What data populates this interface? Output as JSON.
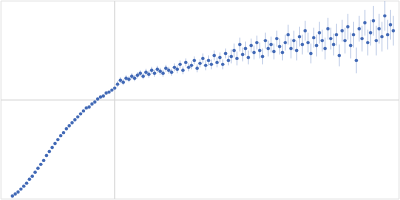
{
  "chart_data": {
    "type": "scatter",
    "color": "#3f67b5",
    "marker": "circle",
    "grid": true,
    "tick_labels": false,
    "xlim": [
      0,
      0.35
    ],
    "xticks": [
      0.1
    ],
    "ylim": [
      0,
      2
    ],
    "yticks": [
      1
    ],
    "x": [
      0.01,
      0.0125,
      0.015,
      0.0175,
      0.02,
      0.0225,
      0.025,
      0.0275,
      0.03,
      0.0325,
      0.035,
      0.0375,
      0.04,
      0.0425,
      0.045,
      0.0475,
      0.05,
      0.0525,
      0.055,
      0.0575,
      0.06,
      0.0625,
      0.065,
      0.0675,
      0.07,
      0.0725,
      0.075,
      0.0775,
      0.08,
      0.0825,
      0.085,
      0.0875,
      0.09,
      0.0925,
      0.095,
      0.0975,
      0.1,
      0.1025,
      0.105,
      0.1075,
      0.11,
      0.1125,
      0.115,
      0.1175,
      0.12,
      0.1225,
      0.125,
      0.1275,
      0.13,
      0.1325,
      0.135,
      0.1375,
      0.14,
      0.1425,
      0.145,
      0.1475,
      0.15,
      0.1525,
      0.155,
      0.1575,
      0.16,
      0.1625,
      0.165,
      0.1675,
      0.17,
      0.1725,
      0.175,
      0.1775,
      0.18,
      0.1825,
      0.185,
      0.1875,
      0.19,
      0.1925,
      0.195,
      0.1975,
      0.2,
      0.2025,
      0.205,
      0.2075,
      0.21,
      0.2125,
      0.215,
      0.2175,
      0.22,
      0.2225,
      0.225,
      0.2275,
      0.23,
      0.2325,
      0.235,
      0.2375,
      0.24,
      0.2425,
      0.245,
      0.2475,
      0.25,
      0.2525,
      0.255,
      0.2575,
      0.26,
      0.2625,
      0.265,
      0.2675,
      0.27,
      0.2725,
      0.275,
      0.2775,
      0.28,
      0.2825,
      0.285,
      0.2875,
      0.29,
      0.2925,
      0.295,
      0.2975,
      0.3,
      0.3025,
      0.305,
      0.3075,
      0.31,
      0.3125,
      0.315,
      0.3175,
      0.32,
      0.3225,
      0.325,
      0.3275,
      0.33,
      0.3325,
      0.335,
      0.3375,
      0.34,
      0.3425,
      0.345
    ],
    "values": [
      0.03,
      0.05,
      0.07,
      0.1,
      0.13,
      0.16,
      0.2,
      0.23,
      0.27,
      0.31,
      0.35,
      0.39,
      0.44,
      0.48,
      0.52,
      0.56,
      0.6,
      0.64,
      0.67,
      0.71,
      0.74,
      0.77,
      0.8,
      0.83,
      0.86,
      0.89,
      0.92,
      0.93,
      0.96,
      0.98,
      1.01,
      1.03,
      1.04,
      1.07,
      1.08,
      1.1,
      1.12,
      1.16,
      1.2,
      1.18,
      1.22,
      1.21,
      1.24,
      1.22,
      1.25,
      1.27,
      1.24,
      1.28,
      1.26,
      1.3,
      1.27,
      1.31,
      1.29,
      1.27,
      1.32,
      1.3,
      1.28,
      1.33,
      1.31,
      1.36,
      1.3,
      1.38,
      1.33,
      1.35,
      1.4,
      1.32,
      1.37,
      1.42,
      1.35,
      1.4,
      1.36,
      1.45,
      1.38,
      1.43,
      1.36,
      1.47,
      1.4,
      1.44,
      1.5,
      1.42,
      1.56,
      1.46,
      1.52,
      1.43,
      1.55,
      1.48,
      1.58,
      1.5,
      1.44,
      1.6,
      1.52,
      1.56,
      1.49,
      1.62,
      1.54,
      1.48,
      1.58,
      1.66,
      1.52,
      1.6,
      1.5,
      1.64,
      1.56,
      1.7,
      1.58,
      1.47,
      1.63,
      1.55,
      1.68,
      1.6,
      1.52,
      1.72,
      1.62,
      1.56,
      1.66,
      1.45,
      1.7,
      1.6,
      1.74,
      1.55,
      1.66,
      1.4,
      1.72,
      1.62,
      1.78,
      1.58,
      1.68,
      1.8,
      1.6,
      1.72,
      1.64,
      1.85,
      1.66,
      1.76,
      1.7
    ],
    "errors": [
      0.005,
      0.005,
      0.005,
      0.005,
      0.005,
      0.005,
      0.005,
      0.005,
      0.005,
      0.005,
      0.006,
      0.006,
      0.006,
      0.006,
      0.006,
      0.006,
      0.006,
      0.006,
      0.006,
      0.006,
      0.008,
      0.008,
      0.008,
      0.008,
      0.008,
      0.008,
      0.008,
      0.008,
      0.008,
      0.008,
      0.01,
      0.01,
      0.01,
      0.01,
      0.01,
      0.01,
      0.01,
      0.03,
      0.03,
      0.03,
      0.03,
      0.03,
      0.03,
      0.03,
      0.03,
      0.03,
      0.03,
      0.035,
      0.035,
      0.035,
      0.035,
      0.035,
      0.035,
      0.035,
      0.035,
      0.035,
      0.035,
      0.04,
      0.04,
      0.04,
      0.04,
      0.04,
      0.04,
      0.04,
      0.04,
      0.04,
      0.04,
      0.05,
      0.05,
      0.05,
      0.05,
      0.05,
      0.05,
      0.05,
      0.05,
      0.05,
      0.05,
      0.07,
      0.07,
      0.07,
      0.07,
      0.07,
      0.07,
      0.07,
      0.07,
      0.07,
      0.07,
      0.08,
      0.08,
      0.08,
      0.08,
      0.08,
      0.08,
      0.08,
      0.08,
      0.08,
      0.08,
      0.1,
      0.1,
      0.1,
      0.1,
      0.1,
      0.1,
      0.1,
      0.1,
      0.1,
      0.1,
      0.11,
      0.11,
      0.11,
      0.11,
      0.11,
      0.11,
      0.11,
      0.11,
      0.11,
      0.11,
      0.13,
      0.13,
      0.13,
      0.13,
      0.13,
      0.13,
      0.13,
      0.13,
      0.13,
      0.13,
      0.15,
      0.15,
      0.15,
      0.15,
      0.15,
      0.15,
      0.15,
      0.15
    ]
  }
}
